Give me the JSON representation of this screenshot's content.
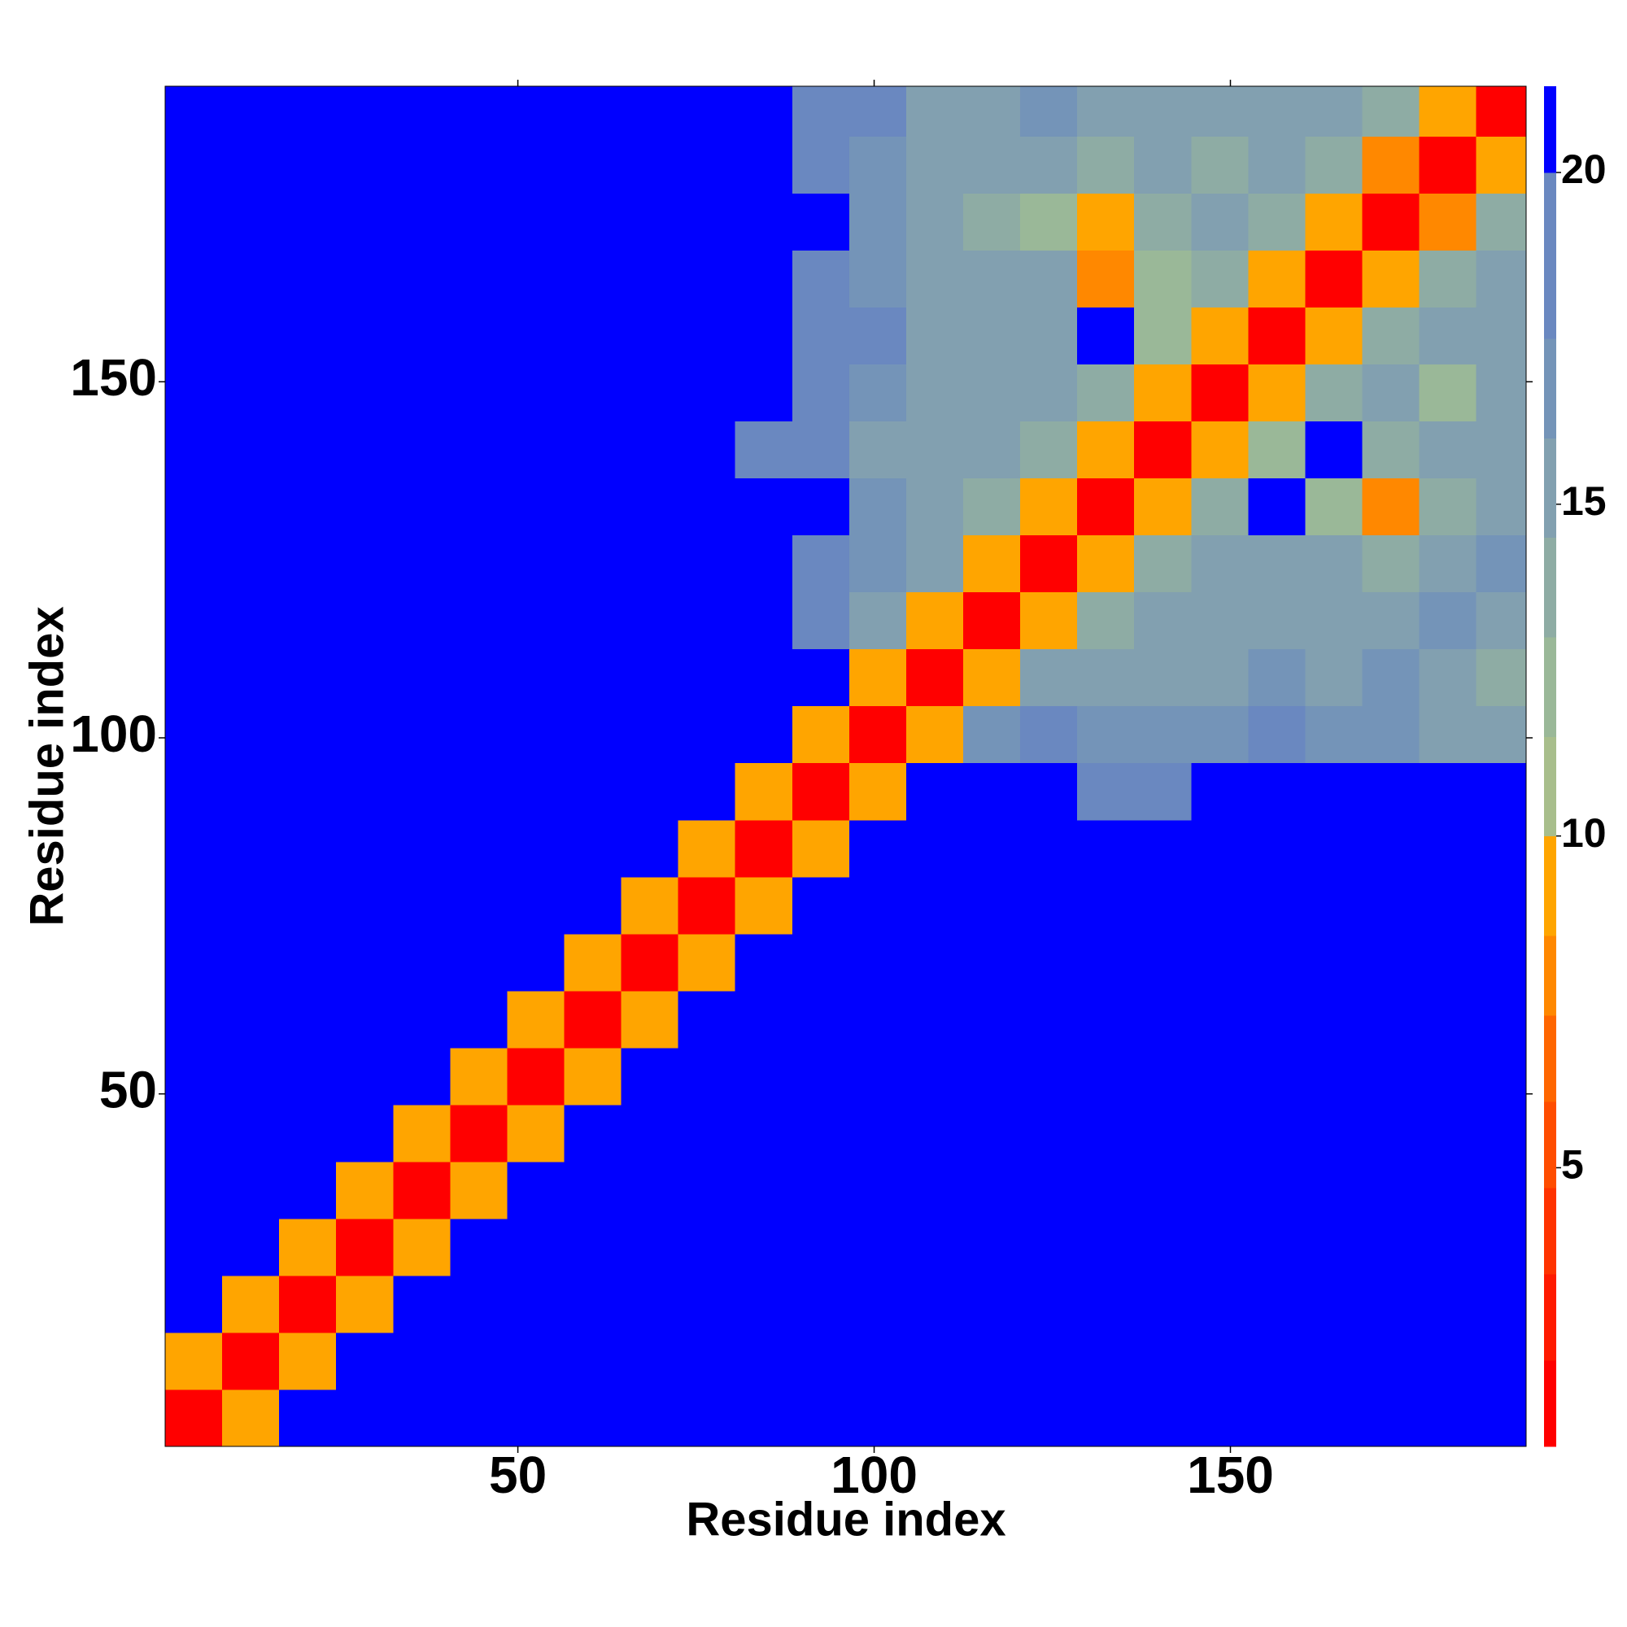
{
  "chart_data": {
    "type": "heatmap",
    "xlabel": "Residue index",
    "ylabel": "Residue index",
    "x": [
      0.5,
      8.5,
      16.5,
      24.5,
      32.5,
      40.5,
      48.5,
      56.5,
      64.5,
      72.5,
      80.5,
      88.5,
      96.5,
      104.5,
      112.5,
      120.5,
      128.5,
      136.5,
      144.5,
      152.5,
      160.5,
      168.5,
      176.5,
      184.5,
      191.5
    ],
    "y": [
      0.5,
      8.5,
      16.5,
      24.5,
      32.5,
      40.5,
      48.5,
      56.5,
      64.5,
      72.5,
      80.5,
      88.5,
      96.5,
      104.5,
      112.5,
      120.5,
      128.5,
      136.5,
      144.5,
      152.5,
      160.5,
      168.5,
      176.5,
      184.5,
      191.5
    ],
    "xlim": [
      0.5,
      191.5
    ],
    "ylim": [
      0.5,
      191.5
    ],
    "xticks": [
      50,
      100,
      150
    ],
    "yticks": [
      50,
      100,
      150
    ],
    "z": [
      [
        2,
        9,
        21,
        21,
        21,
        21,
        21,
        21,
        21,
        21,
        21,
        21,
        21,
        21,
        21,
        21,
        21,
        21,
        21,
        21,
        21,
        21,
        21,
        21
      ],
      [
        9,
        2,
        10,
        21,
        21,
        21,
        21,
        21,
        21,
        21,
        21,
        21,
        21,
        21,
        21,
        21,
        21,
        21,
        21,
        21,
        21,
        21,
        21,
        21
      ],
      [
        21,
        10,
        2,
        10,
        21,
        21,
        21,
        21,
        21,
        21,
        21,
        21,
        21,
        21,
        21,
        21,
        21,
        21,
        21,
        21,
        21,
        21,
        21,
        21
      ],
      [
        21,
        21,
        10,
        2,
        10,
        21,
        21,
        21,
        21,
        21,
        21,
        21,
        21,
        21,
        21,
        21,
        21,
        21,
        21,
        21,
        21,
        21,
        21,
        21
      ],
      [
        21,
        21,
        21,
        10,
        2,
        10,
        21,
        21,
        21,
        21,
        21,
        21,
        21,
        21,
        21,
        21,
        21,
        21,
        21,
        21,
        21,
        21,
        21,
        21
      ],
      [
        21,
        21,
        21,
        21,
        10,
        2,
        10,
        21,
        21,
        21,
        21,
        21,
        21,
        21,
        21,
        21,
        21,
        21,
        21,
        21,
        21,
        21,
        21,
        21
      ],
      [
        21,
        21,
        21,
        21,
        21,
        10,
        2,
        10,
        21,
        21,
        21,
        21,
        21,
        21,
        21,
        21,
        21,
        21,
        21,
        21,
        21,
        21,
        21,
        21
      ],
      [
        21,
        21,
        21,
        21,
        21,
        21,
        10,
        2,
        10,
        21,
        21,
        21,
        21,
        21,
        21,
        21,
        21,
        21,
        21,
        21,
        21,
        21,
        21,
        21
      ],
      [
        21,
        21,
        21,
        21,
        21,
        21,
        21,
        10,
        2,
        10,
        21,
        21,
        21,
        21,
        21,
        21,
        21,
        21,
        21,
        21,
        21,
        21,
        21,
        21
      ],
      [
        21,
        21,
        21,
        21,
        21,
        21,
        21,
        21,
        10,
        2,
        10,
        21,
        21,
        21,
        21,
        21,
        21,
        21,
        21,
        21,
        21,
        21,
        21,
        21
      ],
      [
        21,
        21,
        21,
        21,
        21,
        21,
        21,
        21,
        21,
        10,
        2,
        10,
        21,
        21,
        21,
        21,
        21,
        21,
        21,
        21,
        21,
        21,
        21,
        21
      ],
      [
        21,
        21,
        21,
        21,
        21,
        21,
        21,
        21,
        21,
        21,
        10,
        2,
        10,
        21,
        21,
        21,
        19.5,
        19.5,
        21,
        21,
        21,
        21,
        21,
        21
      ],
      [
        21,
        21,
        21,
        21,
        21,
        21,
        21,
        21,
        21,
        21,
        21,
        10,
        2,
        9,
        17,
        18,
        17,
        16.5,
        17,
        19,
        17,
        17,
        16,
        15
      ],
      [
        21,
        21,
        21,
        21,
        21,
        21,
        21,
        21,
        21,
        21,
        21,
        21,
        9,
        2,
        9.5,
        15,
        16,
        15,
        16,
        17,
        16,
        17,
        15,
        14
      ],
      [
        21,
        21,
        21,
        21,
        21,
        21,
        21,
        21,
        21,
        21,
        21,
        20,
        16,
        9.5,
        2,
        9,
        14,
        15,
        15,
        16,
        15,
        16,
        17,
        16
      ],
      [
        21,
        21,
        21,
        21,
        21,
        21,
        21,
        21,
        21,
        21,
        21,
        19.5,
        17,
        15,
        9,
        2,
        9,
        14,
        15,
        16,
        15,
        14,
        16,
        17
      ],
      [
        21,
        21,
        21,
        21,
        21,
        21,
        21,
        21,
        21,
        21,
        21,
        21,
        17,
        16,
        14,
        9,
        2,
        9,
        14,
        21,
        12,
        7.5,
        14,
        15
      ],
      [
        21,
        21,
        21,
        21,
        21,
        21,
        21,
        21,
        21,
        21,
        19.5,
        19,
        16,
        15,
        15,
        14,
        9,
        2,
        9,
        13,
        21,
        14,
        15,
        16
      ],
      [
        21,
        21,
        21,
        21,
        21,
        21,
        21,
        21,
        21,
        21,
        21,
        18,
        17,
        16,
        15,
        15,
        14,
        9,
        2,
        9,
        14,
        15,
        13,
        15
      ],
      [
        21,
        21,
        21,
        21,
        21,
        21,
        21,
        21,
        21,
        21,
        21,
        19,
        18,
        16,
        16,
        16,
        21,
        13,
        9,
        2,
        9,
        14,
        15,
        16
      ],
      [
        21,
        21,
        21,
        21,
        21,
        21,
        21,
        21,
        21,
        21,
        21,
        20,
        17,
        15,
        15,
        15,
        7.5,
        12,
        14,
        9,
        2,
        9,
        14,
        15
      ],
      [
        21,
        21,
        21,
        21,
        21,
        21,
        21,
        21,
        21,
        21,
        21,
        21,
        17,
        16,
        14,
        13,
        10,
        14,
        15,
        14,
        9,
        2,
        7.5,
        14
      ],
      [
        21,
        21,
        21,
        21,
        21,
        21,
        21,
        21,
        21,
        21,
        21,
        20,
        17,
        16,
        15,
        16,
        14,
        15,
        14,
        15,
        14,
        7.5,
        2,
        9
      ],
      [
        21,
        21,
        21,
        21,
        21,
        21,
        21,
        21,
        21,
        21,
        21,
        19,
        18,
        16,
        15,
        17,
        15,
        16,
        16,
        15,
        15,
        14,
        9,
        2
      ]
    ],
    "colorbar": {
      "lim": [
        0.8,
        21.3
      ],
      "ticks": [
        5,
        10,
        15,
        20
      ],
      "levels": [
        0.8,
        2.1,
        3.4,
        4.7,
        6.0,
        7.3,
        8.5,
        10,
        11.5,
        13,
        14.5,
        16,
        17.5,
        20,
        21.3
      ],
      "colors": [
        "#ff0000",
        "#ff1a00",
        "#ff3300",
        "#ff4d00",
        "#ff6600",
        "#ff8800",
        "#ffa500",
        "#a8be8c",
        "#9ab898",
        "#8eaca4",
        "#82a0b0",
        "#7494b8",
        "#6a88c0",
        "#0000ff"
      ]
    }
  }
}
